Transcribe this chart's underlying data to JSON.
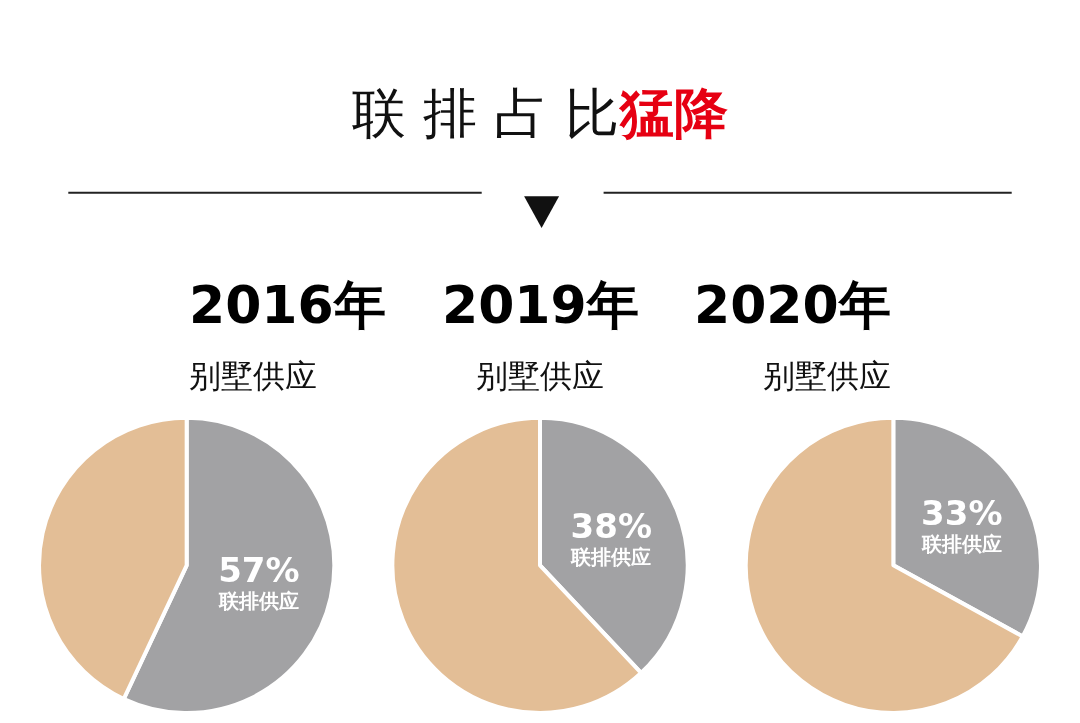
{
  "chart_data": [
    {
      "type": "pie",
      "title": "2016年",
      "subtitle": "别墅供应",
      "annotations": [
        "联排占比",
        "猛降"
      ],
      "categories": [
        "联排供应",
        null
      ],
      "values": [
        57,
        43
      ],
      "value_labels": [
        "57%",
        null
      ],
      "colors": [
        "#a2a2a4",
        "#e3be96"
      ]
    },
    {
      "type": "pie",
      "title": "2019年",
      "subtitle": "别墅供应",
      "categories": [
        "联排供应",
        null
      ],
      "values": [
        38,
        62
      ],
      "value_labels": [
        "38%",
        null
      ],
      "colors": [
        "#a2a2a4",
        "#e3be96"
      ]
    },
    {
      "type": "pie",
      "title": "2020年",
      "subtitle": "别墅供应",
      "categories": [
        "联排供应",
        null
      ],
      "values": [
        33,
        67
      ],
      "value_labels": [
        "33%",
        null
      ],
      "colors": [
        "#a2a2a4",
        "#e3be96"
      ]
    }
  ]
}
